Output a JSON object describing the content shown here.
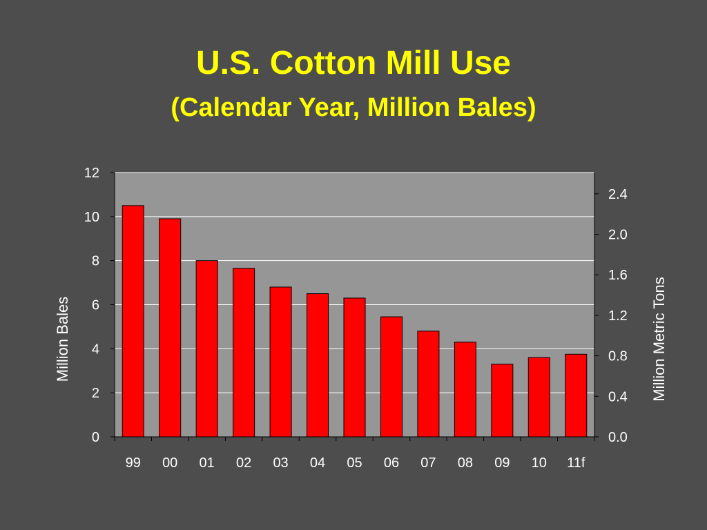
{
  "slide": {
    "title": "U.S. Cotton Mill Use",
    "subtitle": "(Calendar Year, Million Bales)"
  },
  "colors": {
    "background": "#4d4d4d",
    "title": "#ffff00",
    "plot_area": "#969696",
    "bar_fill": "#ff0000",
    "text": "#ffffff"
  },
  "chart_data": {
    "type": "bar",
    "categories": [
      "99",
      "00",
      "01",
      "02",
      "03",
      "04",
      "05",
      "06",
      "07",
      "08",
      "09",
      "10",
      "11f"
    ],
    "values": [
      10.5,
      9.9,
      8.0,
      7.65,
      6.8,
      6.5,
      6.3,
      5.45,
      4.8,
      4.3,
      3.3,
      3.6,
      3.75
    ],
    "title": "U.S. Cotton Mill Use",
    "subtitle": "(Calendar Year, Million Bales)",
    "ylabel": "Million Bales",
    "ylim": [
      0,
      12
    ],
    "yticks": [
      "0",
      "2",
      "4",
      "6",
      "8",
      "10",
      "12"
    ],
    "y2label": "Million Metric Tons",
    "y2lim": [
      0,
      2.61
    ],
    "y2ticks": [
      "0.0",
      "0.4",
      "0.8",
      "1.2",
      "1.6",
      "2.0",
      "2.4"
    ],
    "grid": true,
    "legend": "none"
  }
}
